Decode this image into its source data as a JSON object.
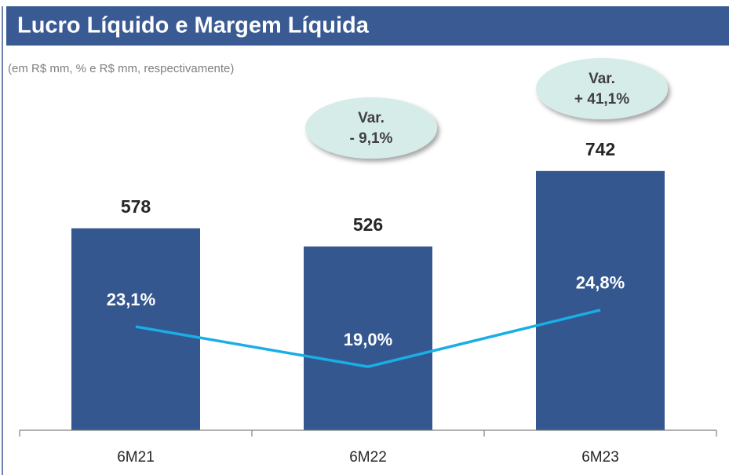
{
  "chart_data": {
    "type": "bar",
    "title": "Lucro Líquido e Margem Líquida",
    "subtitle": "(em R$ mm, % e R$ mm, respectivamente)",
    "categories": [
      "6M21",
      "6M22",
      "6M23"
    ],
    "series": [
      {
        "type": "bar",
        "color": "#34578f",
        "values": [
          578,
          526,
          742
        ]
      },
      {
        "type": "line",
        "axis": "y2",
        "color": "#1aaee6",
        "values": [
          23.1,
          19.0,
          24.8
        ],
        "value_labels": [
          "23,1%",
          "19,0%",
          "24,8%"
        ]
      }
    ],
    "ylim": [
      0,
      800
    ],
    "y2lim": [
      12.5,
      41.1
    ],
    "annotations": [
      [
        "Var.",
        "- 9,1%"
      ],
      [
        "Var.",
        "+ 41,1%"
      ]
    ]
  }
}
